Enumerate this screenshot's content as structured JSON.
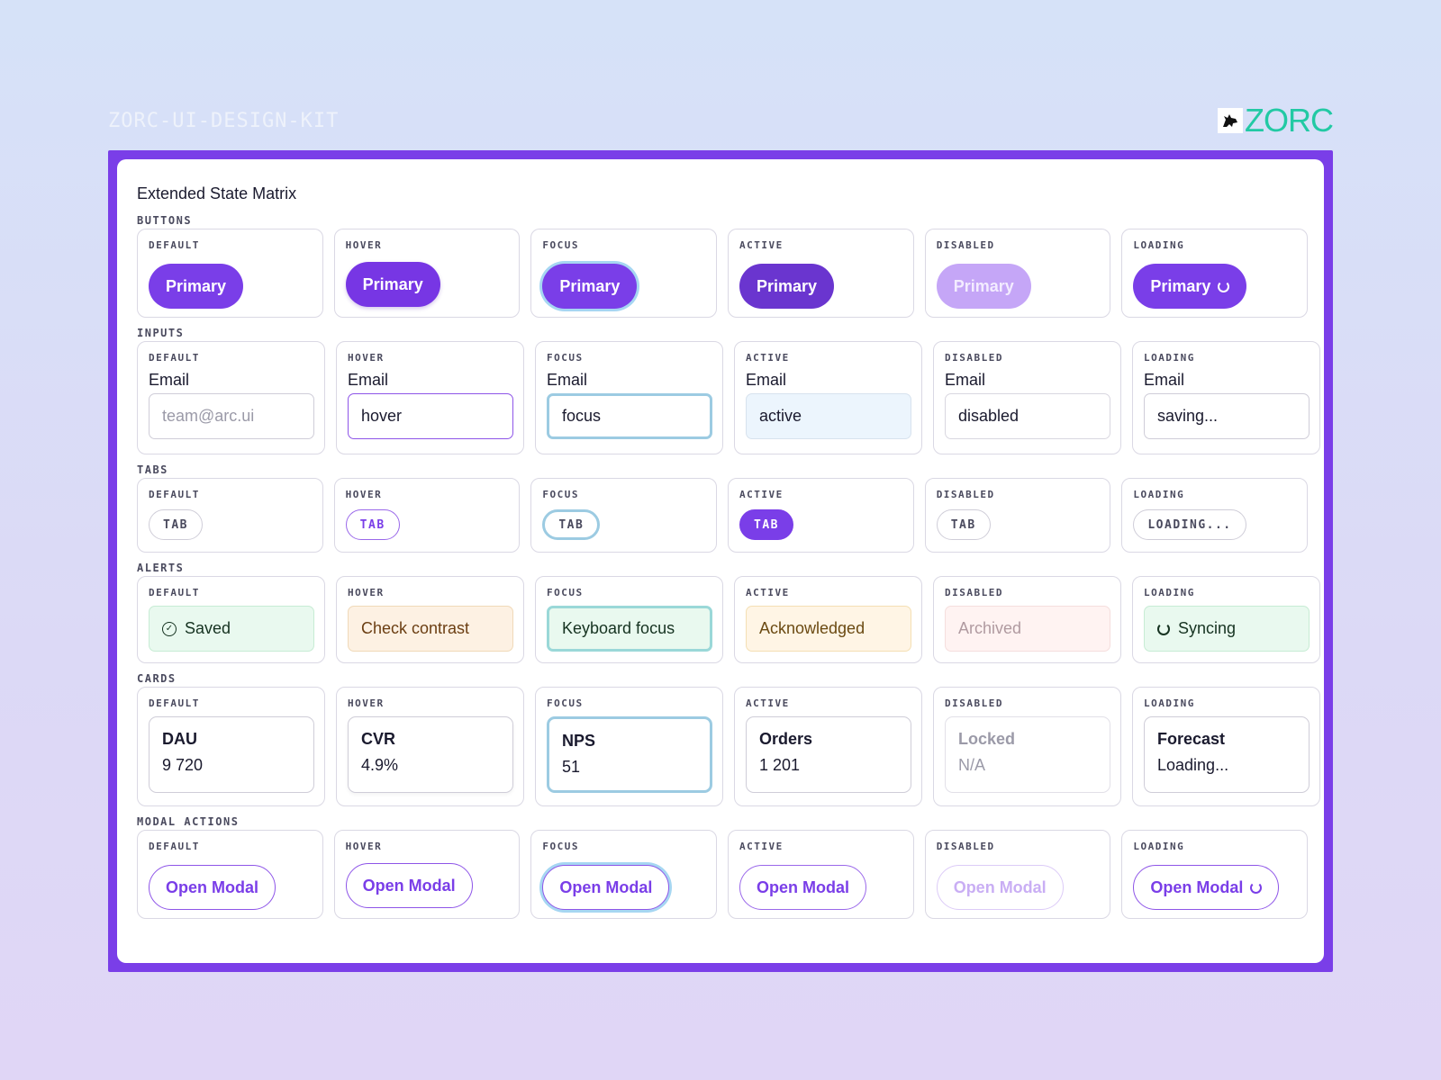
{
  "header": {
    "kit_title": "ZORC-UI-DESIGN-KIT",
    "logo_text": "ZORC",
    "logo_icon": "wolf-icon"
  },
  "panel": {
    "title": "Extended State Matrix"
  },
  "states": [
    "DEFAULT",
    "HOVER",
    "FOCUS",
    "ACTIVE",
    "DISABLED",
    "LOADING"
  ],
  "sections": {
    "buttons": {
      "label": "BUTTONS",
      "items": [
        "Primary",
        "Primary",
        "Primary",
        "Primary",
        "Primary",
        "Primary"
      ]
    },
    "inputs": {
      "label": "INPUTS",
      "field_label": "Email",
      "values": [
        "team@arc.ui",
        "hover",
        "focus",
        "active",
        "disabled",
        "saving..."
      ]
    },
    "tabs": {
      "label": "TABS",
      "items": [
        "TAB",
        "TAB",
        "TAB",
        "TAB",
        "TAB",
        "LOADING..."
      ]
    },
    "alerts": {
      "label": "ALERTS",
      "items": [
        "Saved",
        "Check contrast",
        "Keyboard focus",
        "Acknowledged",
        "Archived",
        "Syncing"
      ]
    },
    "cards": {
      "label": "CARDS",
      "items": [
        {
          "title": "DAU",
          "value": "9 720"
        },
        {
          "title": "CVR",
          "value": "4.9%"
        },
        {
          "title": "NPS",
          "value": "51"
        },
        {
          "title": "Orders",
          "value": "1 201"
        },
        {
          "title": "Locked",
          "value": "N/A"
        },
        {
          "title": "Forecast",
          "value": "Loading..."
        }
      ]
    },
    "modal_actions": {
      "label": "MODAL ACTIONS",
      "items": [
        "Open Modal",
        "Open Modal",
        "Open Modal",
        "Open Modal",
        "Open Modal",
        "Open Modal"
      ]
    }
  },
  "colors": {
    "brand_purple": "#7a3ee8",
    "logo_green": "#22c9a4",
    "focus_ring": "#9ccbe2"
  }
}
